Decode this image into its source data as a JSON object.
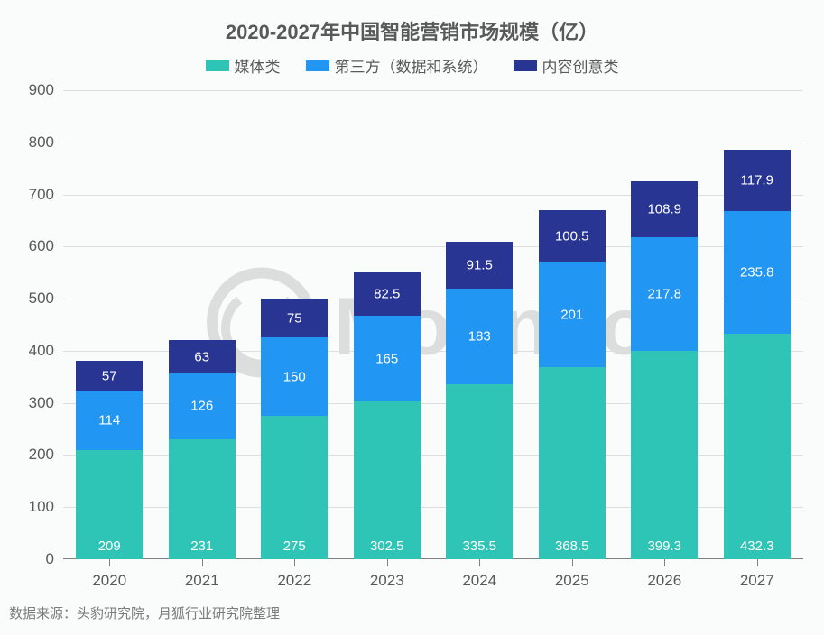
{
  "chart": {
    "type": "stacked-bar",
    "title": "2020-2027年中国智能营销市场规模（亿）",
    "title_fontsize": 22,
    "title_color": "#595959",
    "categories": [
      "2020",
      "2021",
      "2022",
      "2023",
      "2024",
      "2025",
      "2026",
      "2027"
    ],
    "series": [
      {
        "name": "媒体类",
        "color": "#2ec4b6",
        "values": [
          209,
          231,
          275,
          302.5,
          335.5,
          368.5,
          399.3,
          432.3
        ]
      },
      {
        "name": "第三方（数据和系统）",
        "color": "#2196f3",
        "values": [
          114,
          126,
          150,
          165,
          183,
          201,
          217.8,
          235.8
        ]
      },
      {
        "name": "内容创意类",
        "color": "#283593",
        "values": [
          57,
          63,
          75,
          82.5,
          91.5,
          100.5,
          108.9,
          117.9
        ]
      }
    ],
    "ylim": [
      0,
      900
    ],
    "ytick_step": 100,
    "bar_width_ratio": 0.72,
    "grid_color": "#dedede",
    "axis_color": "#808080",
    "background_color": "#fafcfb",
    "tick_fontsize": 17,
    "legend_fontsize": 17,
    "value_label_fontsize": 15,
    "value_label_color": "#ffffff"
  },
  "watermark": {
    "text": "MoonFox",
    "color": "#b9b9b9"
  },
  "source": {
    "label": "数据来源：头豹研究院，月狐行业研究院整理",
    "fontsize": 15,
    "color": "#7b7b7b"
  }
}
